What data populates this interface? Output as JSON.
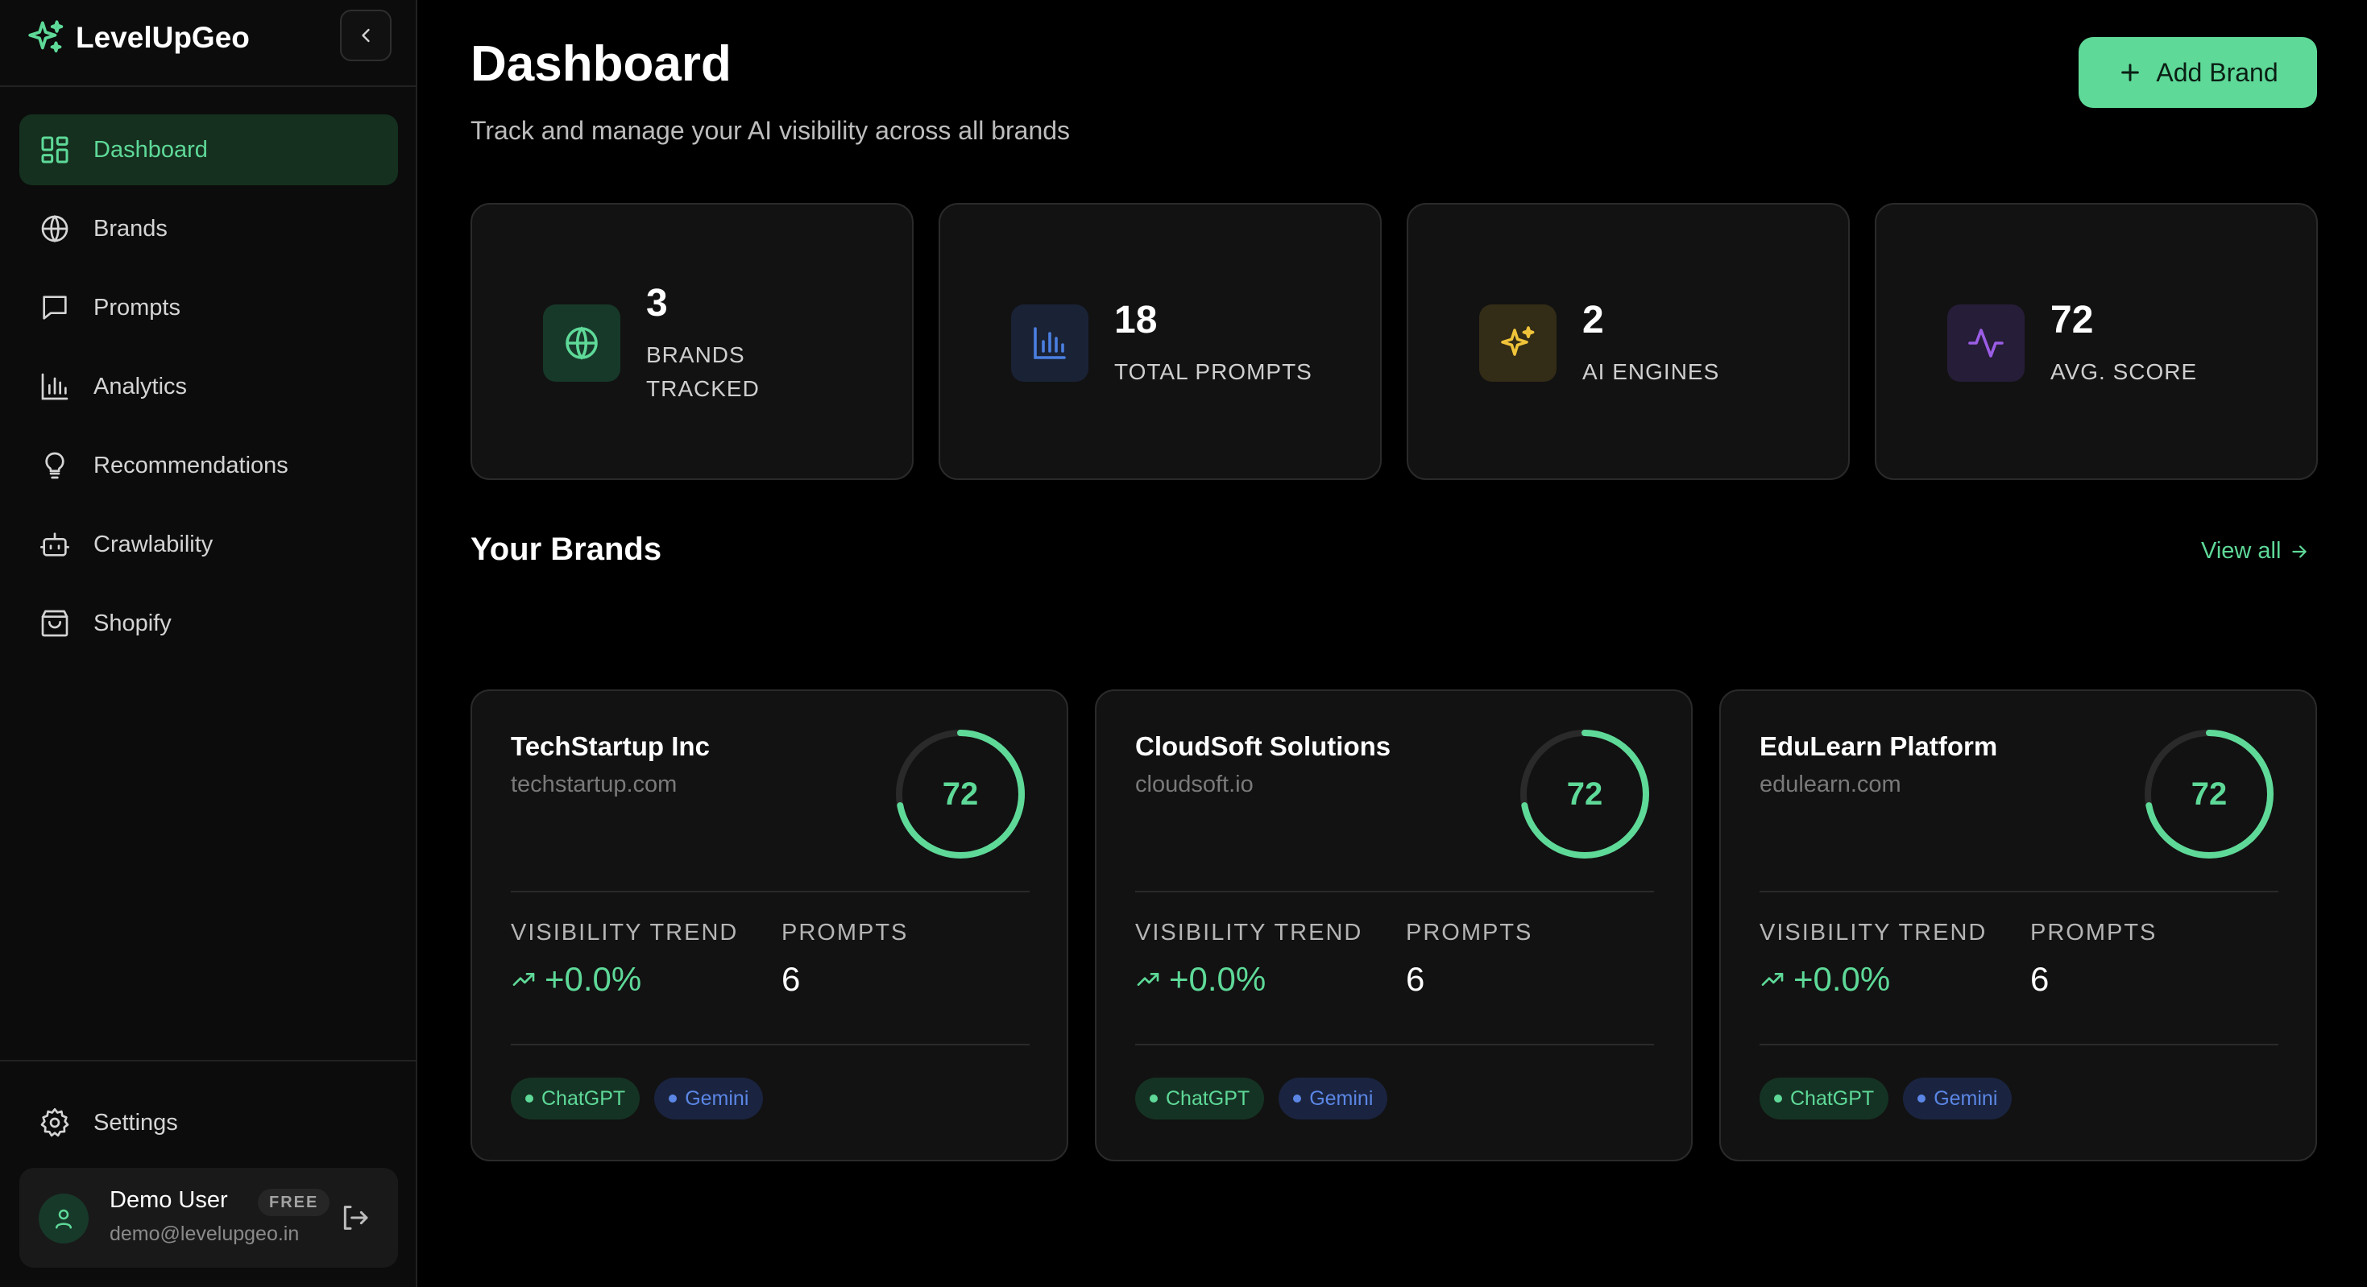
{
  "app": {
    "title": "LevelUpGeo"
  },
  "sidebar": {
    "items": [
      {
        "label": "Dashboard",
        "icon": "dashboard-icon",
        "active": true
      },
      {
        "label": "Brands",
        "icon": "globe-icon"
      },
      {
        "label": "Prompts",
        "icon": "message-icon"
      },
      {
        "label": "Analytics",
        "icon": "bar-chart-icon"
      },
      {
        "label": "Recommendations",
        "icon": "lightbulb-icon"
      },
      {
        "label": "Crawlability",
        "icon": "bot-icon"
      },
      {
        "label": "Shopify",
        "icon": "shopping-bag-icon"
      }
    ],
    "settings_label": "Settings",
    "user": {
      "name": "Demo User",
      "plan": "FREE",
      "email": "demo@levelupgeo.in"
    }
  },
  "header": {
    "title": "Dashboard",
    "subtitle": "Track and manage your AI visibility across all brands",
    "add_button_label": "Add Brand"
  },
  "stats": [
    {
      "value": "3",
      "label": "BRANDS TRACKED",
      "icon": "globe-icon",
      "color": "#5ed998",
      "bg": "#17392a"
    },
    {
      "value": "18",
      "label": "TOTAL PROMPTS",
      "icon": "bar-chart-icon",
      "color": "#4a7fe0",
      "bg": "#1a2236"
    },
    {
      "value": "2",
      "label": "AI ENGINES",
      "icon": "sparkles-icon",
      "color": "#f0c43a",
      "bg": "#332c16"
    },
    {
      "value": "72",
      "label": "AVG. SCORE",
      "icon": "activity-icon",
      "color": "#9b5de5",
      "bg": "#261d38"
    }
  ],
  "brands_section": {
    "title": "Your Brands",
    "view_all_label": "View all"
  },
  "brands": [
    {
      "name": "TechStartup Inc",
      "domain": "techstartup.com",
      "score": "72",
      "score_fraction": 0.72,
      "trend_label": "VISIBILITY TREND",
      "trend": "+0.0%",
      "prompts_label": "PROMPTS",
      "prompts": "6",
      "tags": [
        "ChatGPT",
        "Gemini"
      ]
    },
    {
      "name": "CloudSoft Solutions",
      "domain": "cloudsoft.io",
      "score": "72",
      "score_fraction": 0.72,
      "trend_label": "VISIBILITY TREND",
      "trend": "+0.0%",
      "prompts_label": "PROMPTS",
      "prompts": "6",
      "tags": [
        "ChatGPT",
        "Gemini"
      ]
    },
    {
      "name": "EduLearn Platform",
      "domain": "edulearn.com",
      "score": "72",
      "score_fraction": 0.72,
      "trend_label": "VISIBILITY TREND",
      "trend": "+0.0%",
      "prompts_label": "PROMPTS",
      "prompts": "6",
      "tags": [
        "ChatGPT",
        "Gemini"
      ]
    }
  ],
  "colors": {
    "accent": "#5ed998",
    "chatgpt_tag": "#5ed998",
    "gemini_tag": "#5b86e5"
  }
}
